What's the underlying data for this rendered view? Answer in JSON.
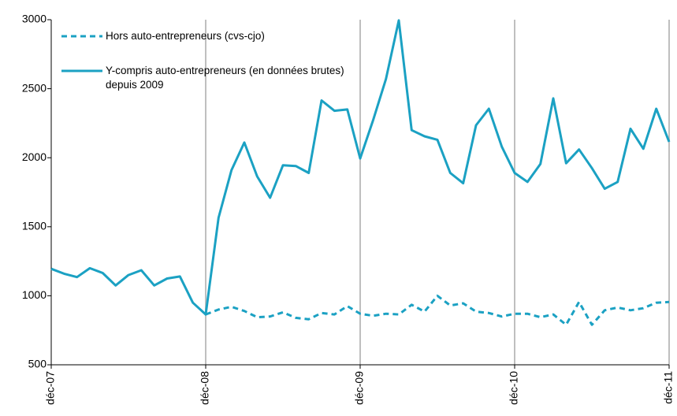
{
  "chart_data": {
    "type": "line",
    "categories": [
      "déc-07",
      null,
      null,
      null,
      null,
      null,
      null,
      null,
      null,
      null,
      null,
      null,
      "déc-08",
      null,
      null,
      null,
      null,
      null,
      null,
      null,
      null,
      null,
      null,
      null,
      "déc-09",
      null,
      null,
      null,
      null,
      null,
      null,
      null,
      null,
      null,
      null,
      null,
      "déc-10",
      null,
      null,
      null,
      null,
      null,
      null,
      null,
      null,
      null,
      null,
      null,
      "déc-11"
    ],
    "series": [
      {
        "name": "Hors auto-entrepreneurs (cvs-cjo)",
        "color": "#1ba1c3",
        "dash": true,
        "values": [
          null,
          null,
          null,
          null,
          null,
          null,
          null,
          null,
          null,
          null,
          null,
          null,
          865,
          900,
          920,
          890,
          845,
          850,
          880,
          840,
          830,
          875,
          865,
          925,
          870,
          855,
          870,
          865,
          935,
          885,
          1000,
          930,
          945,
          885,
          875,
          850,
          870,
          870,
          845,
          865,
          790,
          955,
          790,
          895,
          915,
          895,
          910,
          950,
          955
        ]
      },
      {
        "name": "Y-compris auto-entrepreneurs (en données brutes) depuis 2009",
        "color": "#1ba1c3",
        "dash": false,
        "values": [
          1195,
          1160,
          1135,
          1200,
          1165,
          1075,
          1150,
          1185,
          1075,
          1125,
          1140,
          950,
          865,
          1565,
          1910,
          2110,
          1865,
          1710,
          1945,
          1940,
          1890,
          2415,
          2340,
          2350,
          1995,
          2270,
          2570,
          2995,
          2200,
          2155,
          2130,
          1890,
          1815,
          2235,
          2355,
          2080,
          1890,
          1825,
          1955,
          2430,
          1960,
          2060,
          1925,
          1775,
          1825,
          2210,
          2065,
          2355,
          2115
        ]
      }
    ],
    "ylim": [
      500,
      3000
    ],
    "yticks": [
      500,
      1000,
      1500,
      2000,
      2500,
      3000
    ],
    "grid": true,
    "legend": "upper left"
  }
}
